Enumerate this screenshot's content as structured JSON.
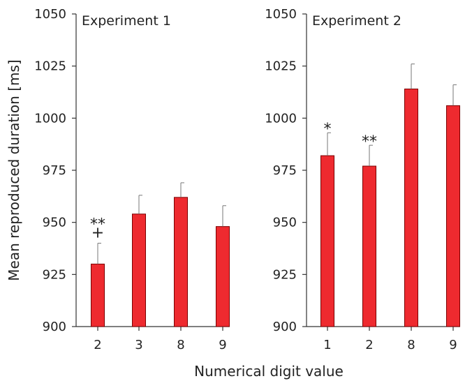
{
  "ylabel": "Mean reproduced duration [ms]",
  "xlabel": "Numerical digit value",
  "bar_color": "#ee2a2f",
  "chart_data": [
    {
      "type": "bar",
      "title": "Experiment 1",
      "categories": [
        "2",
        "3",
        "8",
        "9"
      ],
      "values": [
        930,
        954,
        962,
        948
      ],
      "error_upper": [
        940,
        963,
        969,
        958
      ],
      "annotations": [
        [
          "**",
          "+"
        ],
        [],
        [],
        []
      ],
      "ylim": [
        900,
        1050
      ],
      "yticks": [
        900,
        925,
        950,
        975,
        1000,
        1025,
        1050
      ],
      "ylabel": "Mean reproduced duration [ms]",
      "xlabel": "Numerical digit value"
    },
    {
      "type": "bar",
      "title": "Experiment 2",
      "categories": [
        "1",
        "2",
        "8",
        "9"
      ],
      "values": [
        982,
        977,
        1014,
        1006
      ],
      "error_upper": [
        993,
        987,
        1026,
        1016
      ],
      "annotations": [
        [
          "*"
        ],
        [
          "**"
        ],
        [],
        []
      ],
      "ylim": [
        900,
        1050
      ],
      "yticks": [
        900,
        925,
        950,
        975,
        1000,
        1025,
        1050
      ],
      "ylabel": "",
      "xlabel": "Numerical digit value"
    }
  ]
}
